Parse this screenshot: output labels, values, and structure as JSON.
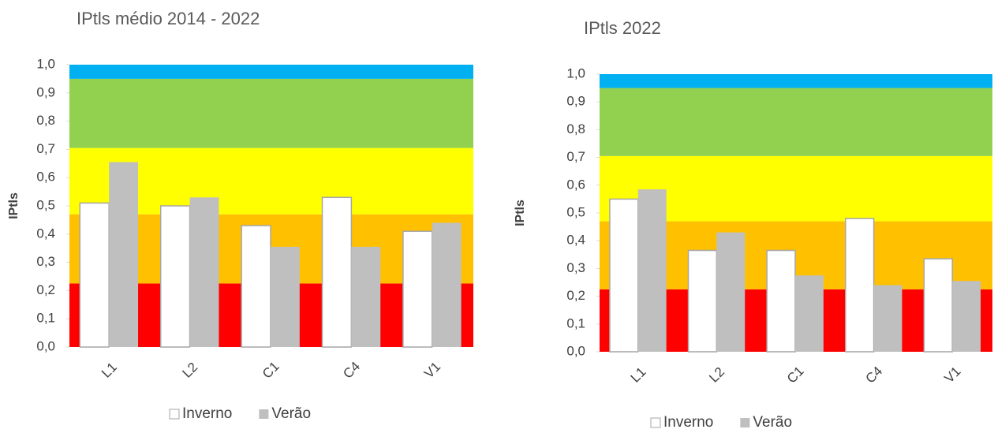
{
  "chart_data": [
    {
      "type": "bar",
      "title": "IPtls médio 2014 - 2022",
      "y_label": "IPtls",
      "categories": [
        "L1",
        "L2",
        "C1",
        "C4",
        "V1"
      ],
      "series": [
        {
          "name": "Inverno",
          "color": "#ffffff",
          "values": [
            0.51,
            0.5,
            0.43,
            0.53,
            0.41
          ]
        },
        {
          "name": "Verão",
          "color": "#bfbfbf",
          "values": [
            0.655,
            0.53,
            0.355,
            0.355,
            0.44
          ]
        }
      ],
      "bands": [
        {
          "from": 0,
          "to": 0.225,
          "color": "#ff0000"
        },
        {
          "from": 0.225,
          "to": 0.47,
          "color": "#ffc000"
        },
        {
          "from": 0.47,
          "to": 0.705,
          "color": "#ffff00"
        },
        {
          "from": 0.705,
          "to": 0.95,
          "color": "#92d050"
        },
        {
          "from": 0.95,
          "to": 1.0,
          "color": "#00b0f0"
        }
      ],
      "ylim": [
        0,
        1.0
      ],
      "yticks": [
        {
          "value": 0,
          "label": "0,0"
        },
        {
          "value": 0.1,
          "label": "0,1"
        },
        {
          "value": 0.2,
          "label": "0,2"
        },
        {
          "value": 0.3,
          "label": "0,3"
        },
        {
          "value": 0.4,
          "label": "0,4"
        },
        {
          "value": 0.5,
          "label": "0,5"
        },
        {
          "value": 0.6,
          "label": "0,6"
        },
        {
          "value": 0.7,
          "label": "0,7"
        },
        {
          "value": 0.8,
          "label": "0,8"
        },
        {
          "value": 0.9,
          "label": "0,9"
        },
        {
          "value": 1.0,
          "label": "1,0"
        }
      ],
      "legend": "bottom"
    },
    {
      "type": "bar",
      "title": "IPtls 2022",
      "y_label": "IPtls",
      "categories": [
        "L1",
        "L2",
        "C1",
        "C4",
        "V1"
      ],
      "series": [
        {
          "name": "Inverno",
          "color": "#ffffff",
          "values": [
            0.55,
            0.365,
            0.365,
            0.48,
            0.335
          ]
        },
        {
          "name": "Verão",
          "color": "#bfbfbf",
          "values": [
            0.585,
            0.43,
            0.275,
            0.24,
            0.255
          ]
        }
      ],
      "bands": [
        {
          "from": 0,
          "to": 0.225,
          "color": "#ff0000"
        },
        {
          "from": 0.225,
          "to": 0.47,
          "color": "#ffc000"
        },
        {
          "from": 0.47,
          "to": 0.705,
          "color": "#ffff00"
        },
        {
          "from": 0.705,
          "to": 0.95,
          "color": "#92d050"
        },
        {
          "from": 0.95,
          "to": 1.0,
          "color": "#00b0f0"
        }
      ],
      "ylim": [
        0,
        1.0
      ],
      "yticks": [
        {
          "value": 0,
          "label": "0,0"
        },
        {
          "value": 0.1,
          "label": "0,1"
        },
        {
          "value": 0.2,
          "label": "0,2"
        },
        {
          "value": 0.3,
          "label": "0,3"
        },
        {
          "value": 0.4,
          "label": "0,4"
        },
        {
          "value": 0.5,
          "label": "0,5"
        },
        {
          "value": 0.6,
          "label": "0,6"
        },
        {
          "value": 0.7,
          "label": "0,7"
        },
        {
          "value": 0.8,
          "label": "0,8"
        },
        {
          "value": 0.9,
          "label": "0,9"
        },
        {
          "value": 1.0,
          "label": "1,0"
        }
      ],
      "legend": "bottom"
    }
  ]
}
